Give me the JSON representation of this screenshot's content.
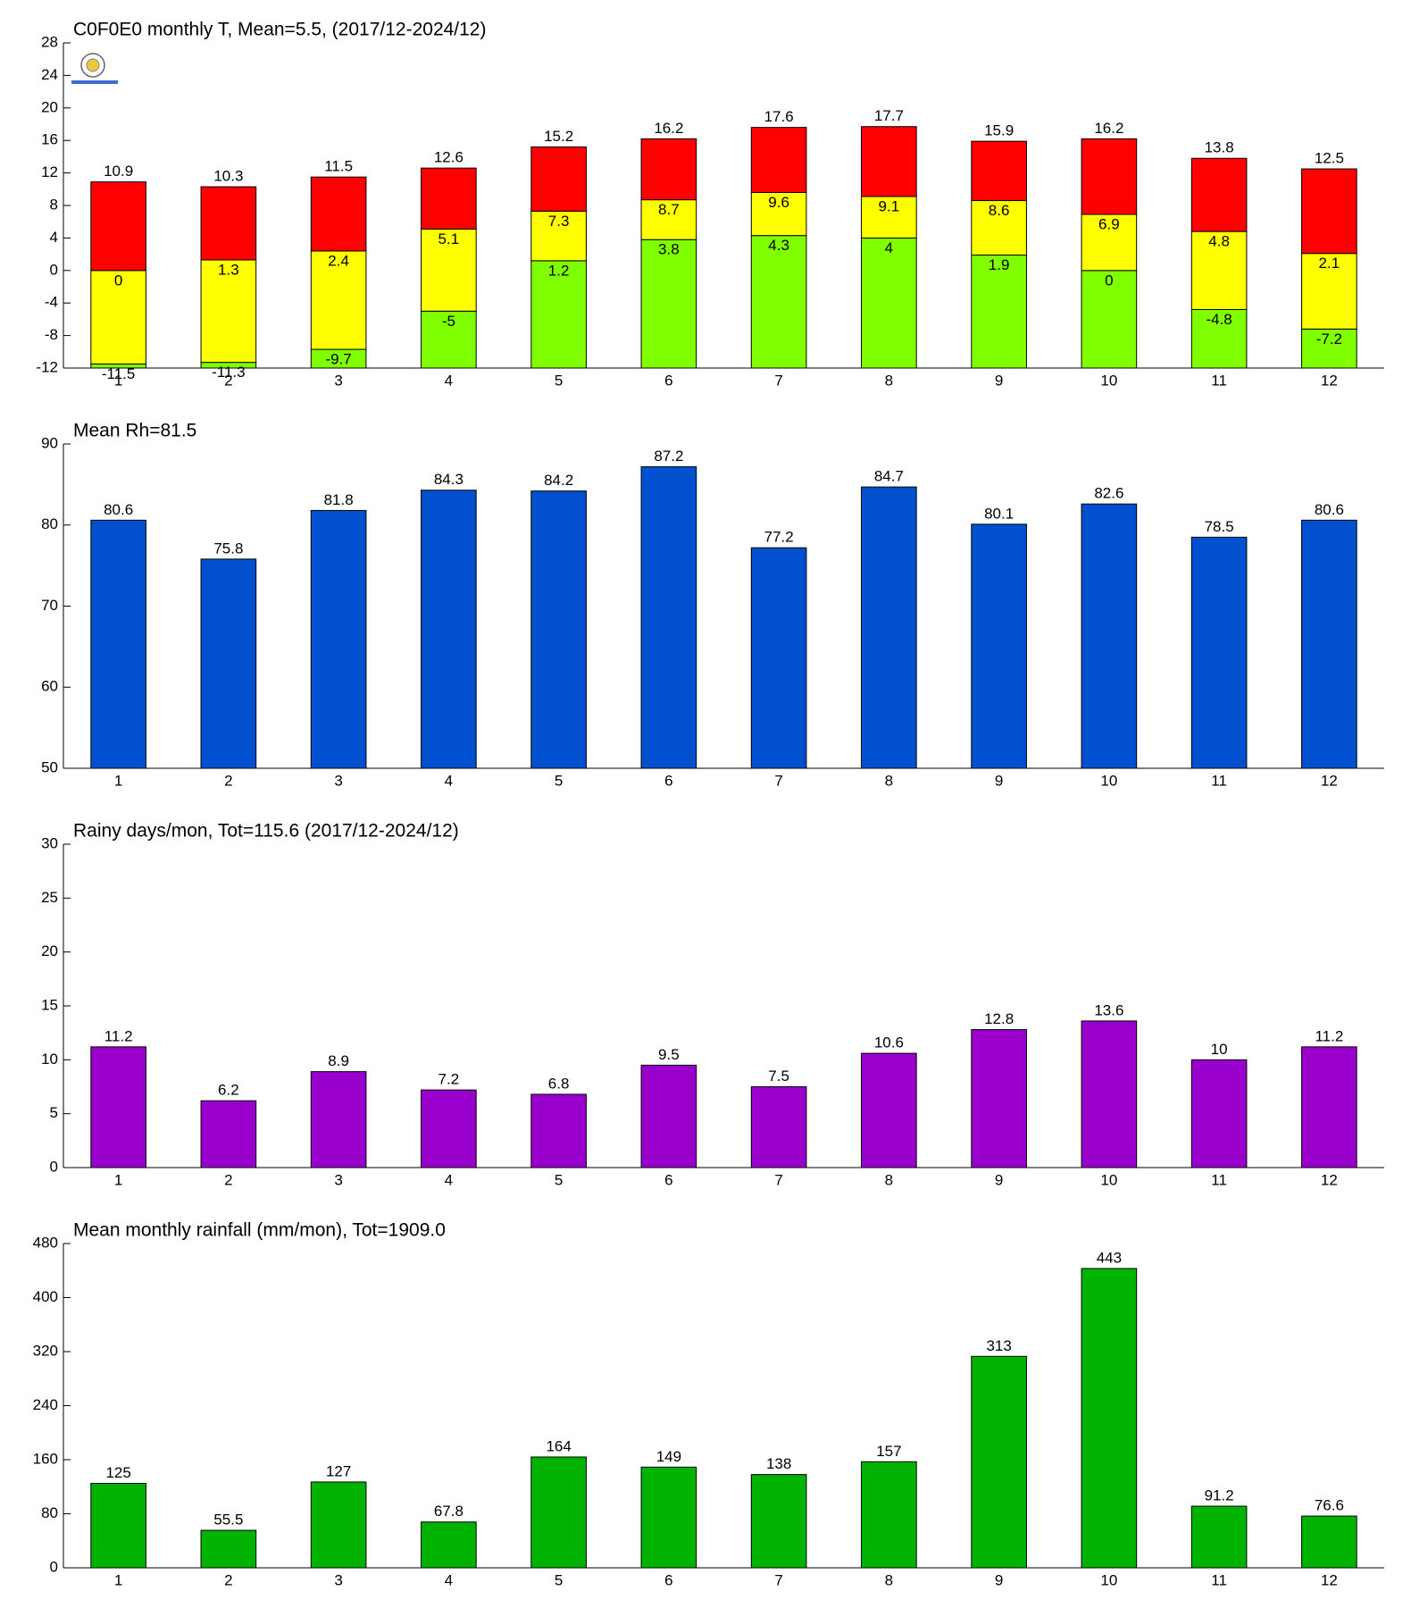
{
  "chart_data": [
    {
      "type": "range-bar",
      "title": "C0F0E0 monthly T, Mean=5.5, (2017/12-2024/12)",
      "categories": [
        "1",
        "2",
        "3",
        "4",
        "5",
        "6",
        "7",
        "8",
        "9",
        "10",
        "11",
        "12"
      ],
      "series": [
        {
          "color": "#80ff00",
          "values": [
            -11.5,
            -11.3,
            -9.7,
            -5,
            1.2,
            3.8,
            4.3,
            4,
            1.9,
            0,
            -4.8,
            -7.2
          ]
        },
        {
          "color": "#ffff00",
          "values": [
            0,
            1.3,
            2.4,
            5.1,
            7.3,
            8.7,
            9.6,
            9.1,
            8.6,
            6.9,
            4.8,
            2.1
          ]
        },
        {
          "color": "#ff0000",
          "values": [
            10.9,
            10.3,
            11.5,
            12.6,
            15.2,
            16.2,
            17.6,
            17.7,
            15.9,
            16.2,
            13.8,
            12.5
          ]
        }
      ],
      "ylim": [
        -12,
        28
      ],
      "yticks": [
        -12,
        -8,
        -4,
        0,
        4,
        8,
        12,
        16,
        20,
        24,
        28
      ]
    },
    {
      "type": "bar",
      "title": "Mean Rh=81.5",
      "categories": [
        "1",
        "2",
        "3",
        "4",
        "5",
        "6",
        "7",
        "8",
        "9",
        "10",
        "11",
        "12"
      ],
      "values": [
        80.6,
        75.8,
        81.8,
        84.3,
        84.2,
        87.2,
        77.2,
        84.7,
        80.1,
        82.6,
        78.5,
        80.6
      ],
      "color": "#0050d0",
      "ylim": [
        50,
        90
      ],
      "yticks": [
        50,
        60,
        70,
        80,
        90
      ]
    },
    {
      "type": "bar",
      "title": "Rainy days/mon, Tot=115.6 (2017/12-2024/12)",
      "categories": [
        "1",
        "2",
        "3",
        "4",
        "5",
        "6",
        "7",
        "8",
        "9",
        "10",
        "11",
        "12"
      ],
      "values": [
        11.2,
        6.2,
        8.9,
        7.2,
        6.8,
        9.5,
        7.5,
        10.6,
        12.8,
        13.6,
        10,
        11.2
      ],
      "color": "#9900cc",
      "ylim": [
        0,
        30
      ],
      "yticks": [
        0,
        5,
        10,
        15,
        20,
        25,
        30
      ]
    },
    {
      "type": "bar",
      "title": "Mean monthly rainfall (mm/mon), Tot=1909.0",
      "categories": [
        "1",
        "2",
        "3",
        "4",
        "5",
        "6",
        "7",
        "8",
        "9",
        "10",
        "11",
        "12"
      ],
      "values": [
        125,
        55.5,
        127,
        67.8,
        164,
        149,
        138,
        157,
        313,
        443,
        91.2,
        76.6
      ],
      "color": "#00b300",
      "ylim": [
        0,
        480
      ],
      "yticks": [
        0,
        80,
        160,
        240,
        320,
        400,
        480
      ]
    }
  ]
}
